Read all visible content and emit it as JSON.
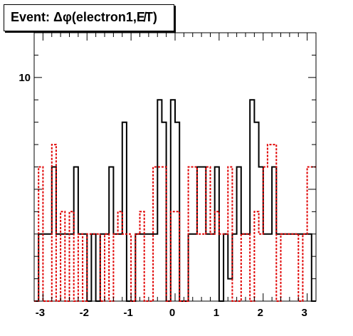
{
  "title": "Event: Δφ(electron1,E̸T)",
  "colors": {
    "series_black": "#000000",
    "series_red": "#e00000",
    "frame": "#000000"
  },
  "chart_data": {
    "type": "histogram",
    "title": "Event: Δφ(electron1,E̸T)",
    "xlim": [
      -3.2,
      3.2
    ],
    "ylim": [
      0,
      12
    ],
    "x_ticks": [
      -3,
      -2,
      -1,
      0,
      1,
      2,
      3
    ],
    "y_ticks": [
      10
    ],
    "bin_edges_start": -3.2,
    "bin_width": 0.1,
    "series": [
      {
        "style": "solid-black",
        "values": [
          0,
          3,
          3,
          3,
          6,
          3,
          3,
          3,
          3,
          6,
          3,
          3,
          0,
          3,
          0,
          3,
          3,
          6,
          3,
          3,
          8,
          0,
          0,
          3,
          3,
          3,
          3,
          3,
          9,
          8,
          0,
          9,
          8,
          0,
          0,
          3,
          3,
          6,
          6,
          3,
          3,
          6,
          0,
          3,
          1,
          3,
          6,
          3,
          3,
          9,
          8,
          6,
          3,
          3,
          6,
          3,
          3,
          3,
          3,
          3,
          3,
          3,
          3,
          0
        ]
      },
      {
        "style": "dashed-red",
        "values": [
          0,
          6,
          0,
          0,
          7,
          0,
          4,
          0,
          4,
          0,
          3,
          0,
          3,
          3,
          3,
          0,
          3,
          0,
          3,
          4,
          3,
          3,
          0,
          3,
          4,
          0,
          0,
          6,
          6,
          6,
          0,
          4,
          4,
          0,
          0,
          6,
          6,
          3,
          3,
          6,
          3,
          4,
          3,
          3,
          6,
          0,
          0,
          3,
          3,
          0,
          4,
          3,
          6,
          7,
          7,
          0,
          3,
          3,
          3,
          3,
          0,
          3,
          6,
          6
        ]
      }
    ]
  }
}
